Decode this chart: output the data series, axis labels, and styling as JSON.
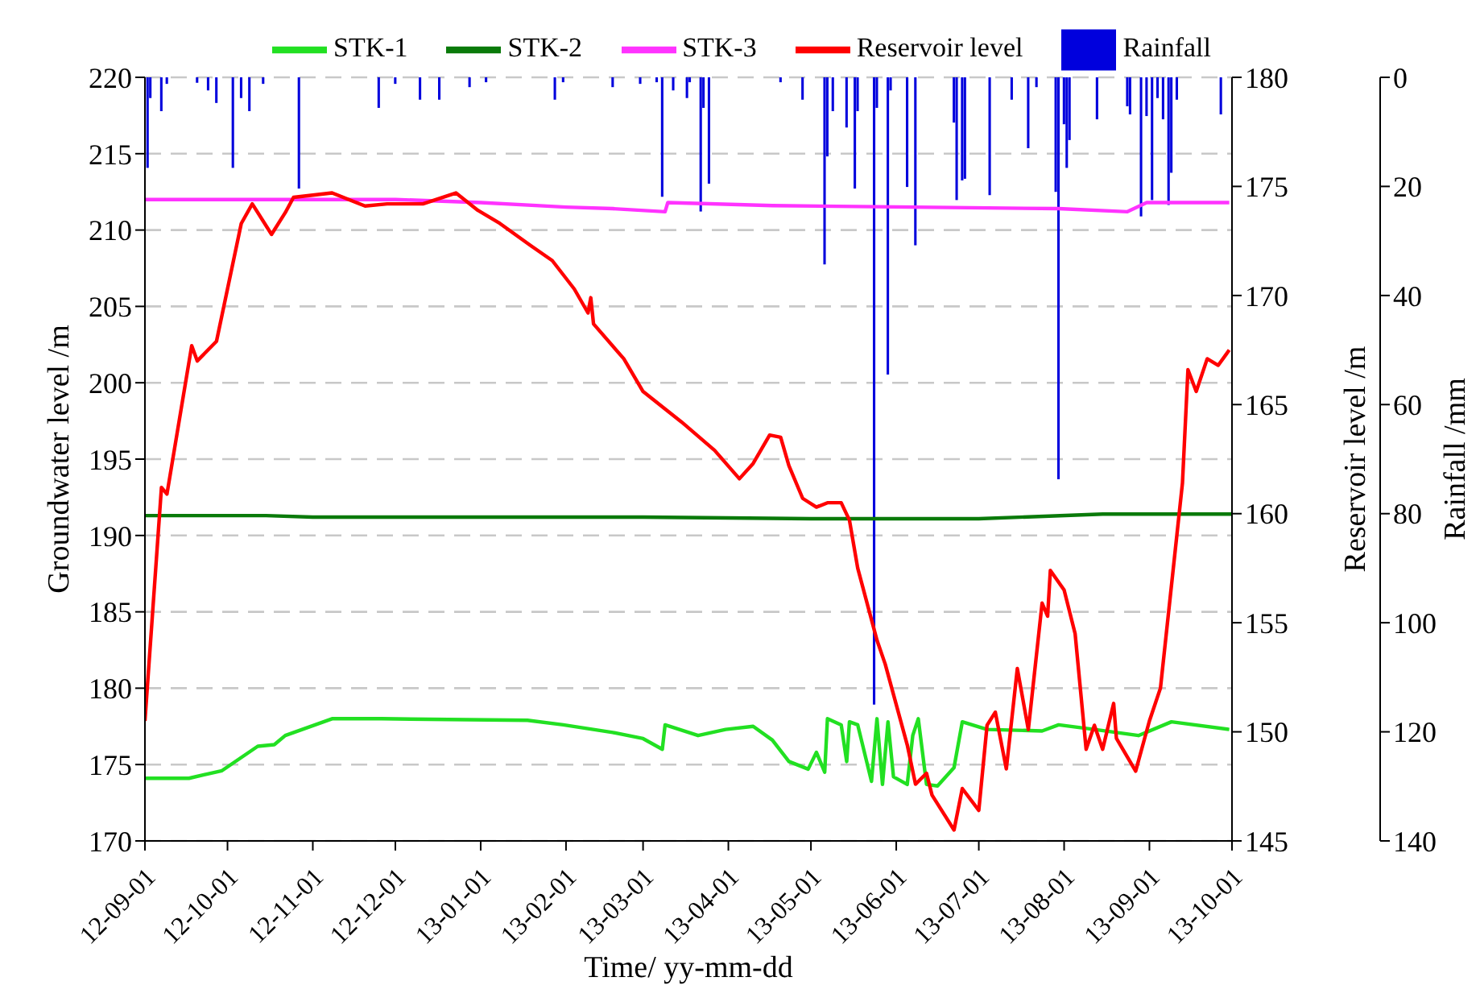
{
  "chart_data": {
    "type": "line",
    "xlabel": "Time/ yy-mm-dd",
    "ylabel": "Groundwater level /m",
    "y2label": "Reservoir level /m",
    "y3label": "Rainfall /mm",
    "xlim": [
      "2012-09-01",
      "2013-10-01"
    ],
    "xticks": [
      {
        "value": "2012-09-01",
        "label": "12-09-01"
      },
      {
        "value": "2012-10-01",
        "label": "12-10-01"
      },
      {
        "value": "2012-11-01",
        "label": "12-11-01"
      },
      {
        "value": "2012-12-01",
        "label": "12-12-01"
      },
      {
        "value": "2013-01-01",
        "label": "13-01-01"
      },
      {
        "value": "2013-02-01",
        "label": "13-02-01"
      },
      {
        "value": "2013-03-01",
        "label": "13-03-01"
      },
      {
        "value": "2013-04-01",
        "label": "13-04-01"
      },
      {
        "value": "2013-05-01",
        "label": "13-05-01"
      },
      {
        "value": "2013-06-01",
        "label": "13-06-01"
      },
      {
        "value": "2013-07-01",
        "label": "13-07-01"
      },
      {
        "value": "2013-08-01",
        "label": "13-08-01"
      },
      {
        "value": "2013-09-01",
        "label": "13-09-01"
      },
      {
        "value": "2013-10-01",
        "label": "13-10-01"
      }
    ],
    "ylim": [
      170,
      220
    ],
    "yticks": [
      170,
      175,
      180,
      185,
      190,
      195,
      200,
      205,
      210,
      215,
      220
    ],
    "y2lim": [
      145,
      180
    ],
    "y2ticks": [
      145,
      150,
      155,
      160,
      165,
      170,
      175,
      180
    ],
    "y3lim": [
      140,
      0
    ],
    "y3ticks": [
      0,
      20,
      40,
      60,
      80,
      100,
      120,
      140
    ],
    "grid": "y",
    "legend": "top",
    "series": [
      {
        "name": "STK-1",
        "color": "#22e022",
        "x": [
          "2012-09-01",
          "2012-09-17",
          "2012-09-29",
          "2012-10-12",
          "2012-10-18",
          "2012-10-22",
          "2012-11-08",
          "2012-11-26",
          "2013-01-18",
          "2013-01-31",
          "2013-02-18",
          "2013-03-01",
          "2013-03-08",
          "2013-03-09",
          "2013-03-21",
          "2013-03-31",
          "2013-04-10",
          "2013-04-17",
          "2013-04-23",
          "2013-04-30",
          "2013-05-03",
          "2013-05-06",
          "2013-05-07",
          "2013-05-12",
          "2013-05-14",
          "2013-05-15",
          "2013-05-18",
          "2013-05-23",
          "2013-05-25",
          "2013-05-27",
          "2013-05-29",
          "2013-05-31",
          "2013-06-05",
          "2013-06-07",
          "2013-06-09",
          "2013-06-12",
          "2013-06-16",
          "2013-06-22",
          "2013-06-25",
          "2013-07-04",
          "2013-07-24",
          "2013-07-30",
          "2013-08-12",
          "2013-08-28",
          "2013-09-09",
          "2013-09-30"
        ],
        "values": [
          174.1,
          174.1,
          174.6,
          176.2,
          176.3,
          176.9,
          178.0,
          178.0,
          177.9,
          177.6,
          177.1,
          176.7,
          176.0,
          177.6,
          176.9,
          177.3,
          177.5,
          176.6,
          175.2,
          174.7,
          175.8,
          174.5,
          178.0,
          177.6,
          175.2,
          177.8,
          177.6,
          173.9,
          178.0,
          173.7,
          177.8,
          174.2,
          173.7,
          176.9,
          178.0,
          173.7,
          173.6,
          174.8,
          177.8,
          177.3,
          177.2,
          177.6,
          177.3,
          176.9,
          177.8,
          177.3
        ]
      },
      {
        "name": "STK-2",
        "color": "#0a7a0a",
        "x": [
          "2012-09-01",
          "2012-10-15",
          "2012-11-01",
          "2013-01-01",
          "2013-03-01",
          "2013-05-01",
          "2013-07-01",
          "2013-08-15",
          "2013-10-01"
        ],
        "values": [
          191.3,
          191.3,
          191.2,
          191.2,
          191.2,
          191.1,
          191.1,
          191.4,
          191.4
        ]
      },
      {
        "name": "STK-3",
        "color": "#ff33ff",
        "x": [
          "2012-09-01",
          "2012-12-01",
          "2013-01-01",
          "2013-02-01",
          "2013-02-18",
          "2013-03-09",
          "2013-03-10",
          "2013-04-17",
          "2013-07-30",
          "2013-08-24",
          "2013-08-31",
          "2013-09-30"
        ],
        "values": [
          212.0,
          212.0,
          211.8,
          211.5,
          211.4,
          211.2,
          211.8,
          211.6,
          211.4,
          211.2,
          211.8,
          211.8
        ]
      },
      {
        "name": "Reservoir level",
        "color": "#ff0000",
        "axis": "y2",
        "x": [
          "2012-09-01",
          "2012-09-07",
          "2012-09-09",
          "2012-09-18",
          "2012-09-20",
          "2012-09-27",
          "2012-10-06",
          "2012-10-10",
          "2012-10-17",
          "2012-10-22",
          "2012-10-25",
          "2012-11-08",
          "2012-11-20",
          "2012-11-28",
          "2012-12-11",
          "2012-12-23",
          "2012-12-31",
          "2013-01-08",
          "2013-01-19",
          "2013-01-27",
          "2013-02-04",
          "2013-02-09",
          "2013-02-10",
          "2013-02-11",
          "2013-02-22",
          "2013-03-01",
          "2013-03-09",
          "2013-03-15",
          "2013-03-27",
          "2013-04-05",
          "2013-04-10",
          "2013-04-16",
          "2013-04-20",
          "2013-04-23",
          "2013-04-28",
          "2013-05-03",
          "2013-05-07",
          "2013-05-12",
          "2013-05-15",
          "2013-05-18",
          "2013-05-25",
          "2013-05-28",
          "2013-06-05",
          "2013-06-08",
          "2013-06-12",
          "2013-06-14",
          "2013-06-22",
          "2013-06-25",
          "2013-07-01",
          "2013-07-04",
          "2013-07-07",
          "2013-07-11",
          "2013-07-15",
          "2013-07-19",
          "2013-07-24",
          "2013-07-26",
          "2013-07-27",
          "2013-08-01",
          "2013-08-05",
          "2013-08-09",
          "2013-08-12",
          "2013-08-15",
          "2013-08-19",
          "2013-08-20",
          "2013-08-27",
          "2013-09-01",
          "2013-09-05",
          "2013-09-13",
          "2013-09-15",
          "2013-09-18",
          "2013-09-22",
          "2013-09-26",
          "2013-09-30"
        ],
        "values": [
          150.5,
          161.2,
          160.9,
          167.7,
          167.0,
          167.9,
          173.3,
          174.2,
          172.8,
          173.8,
          174.5,
          174.7,
          174.1,
          174.2,
          174.2,
          174.7,
          173.9,
          173.3,
          172.3,
          171.6,
          170.3,
          169.2,
          169.9,
          168.7,
          167.1,
          165.6,
          164.8,
          164.2,
          162.9,
          161.6,
          162.3,
          163.6,
          163.5,
          162.2,
          160.7,
          160.3,
          160.5,
          160.5,
          159.7,
          157.5,
          154.2,
          153.1,
          149.4,
          147.6,
          148.1,
          147.1,
          145.5,
          147.4,
          146.4,
          150.3,
          150.9,
          148.3,
          152.9,
          150.1,
          155.9,
          155.3,
          157.4,
          156.5,
          154.5,
          149.2,
          150.3,
          149.2,
          151.3,
          149.7,
          148.2,
          150.5,
          152.0,
          161.4,
          166.6,
          165.6,
          167.1,
          166.8,
          167.5
        ]
      },
      {
        "name": "Rainfall",
        "type": "bar",
        "color": "#0000dd",
        "axis": "y3",
        "x": [
          "2012-09-02",
          "2012-09-03",
          "2012-09-07",
          "2012-09-09",
          "2012-09-20",
          "2012-09-24",
          "2012-09-27",
          "2012-10-03",
          "2012-10-06",
          "2012-10-09",
          "2012-10-14",
          "2012-10-27",
          "2012-11-25",
          "2012-12-01",
          "2012-12-10",
          "2012-12-17",
          "2012-12-28",
          "2013-01-03",
          "2013-01-28",
          "2013-01-31",
          "2013-02-18",
          "2013-02-28",
          "2013-03-06",
          "2013-03-08",
          "2013-03-12",
          "2013-03-17",
          "2013-03-18",
          "2013-03-22",
          "2013-03-23",
          "2013-03-25",
          "2013-04-20",
          "2013-04-28",
          "2013-05-06",
          "2013-05-07",
          "2013-05-09",
          "2013-05-14",
          "2013-05-17",
          "2013-05-18",
          "2013-05-24",
          "2013-05-25",
          "2013-05-29",
          "2013-05-30",
          "2013-06-05",
          "2013-06-08",
          "2013-06-22",
          "2013-06-23",
          "2013-06-25",
          "2013-06-26",
          "2013-07-05",
          "2013-07-13",
          "2013-07-19",
          "2013-07-22",
          "2013-07-29",
          "2013-07-30",
          "2013-08-01",
          "2013-08-02",
          "2013-08-03",
          "2013-08-13",
          "2013-08-24",
          "2013-08-25",
          "2013-08-29",
          "2013-08-31",
          "2013-09-02",
          "2013-09-04",
          "2013-09-06",
          "2013-09-08",
          "2013-09-09",
          "2013-09-11",
          "2013-09-27"
        ],
        "values": [
          16.6,
          3.8,
          6.2,
          1.2,
          1,
          2.4,
          4.7,
          16.6,
          3.8,
          6.2,
          1.2,
          20.4,
          5.6,
          1.2,
          4.1,
          4.1,
          1.8,
          0.9,
          4.1,
          0.9,
          1.8,
          1.2,
          0.9,
          21.9,
          2.4,
          3.8,
          0.9,
          24.6,
          5.6,
          19.5,
          0.9,
          4.1,
          34.3,
          14.5,
          6.2,
          9.2,
          20.4,
          6.2,
          115,
          5.6,
          54.5,
          2.4,
          20.1,
          30.8,
          8.3,
          22.5,
          18.9,
          18.6,
          21.6,
          4.1,
          13.0,
          1.8,
          21.0,
          73.7,
          8.6,
          16.6,
          11.5,
          7.7,
          5.3,
          6.8,
          25.5,
          7.1,
          22.5,
          3.8,
          7.7,
          23.4,
          17.5,
          4.1,
          6.8
        ]
      }
    ]
  }
}
